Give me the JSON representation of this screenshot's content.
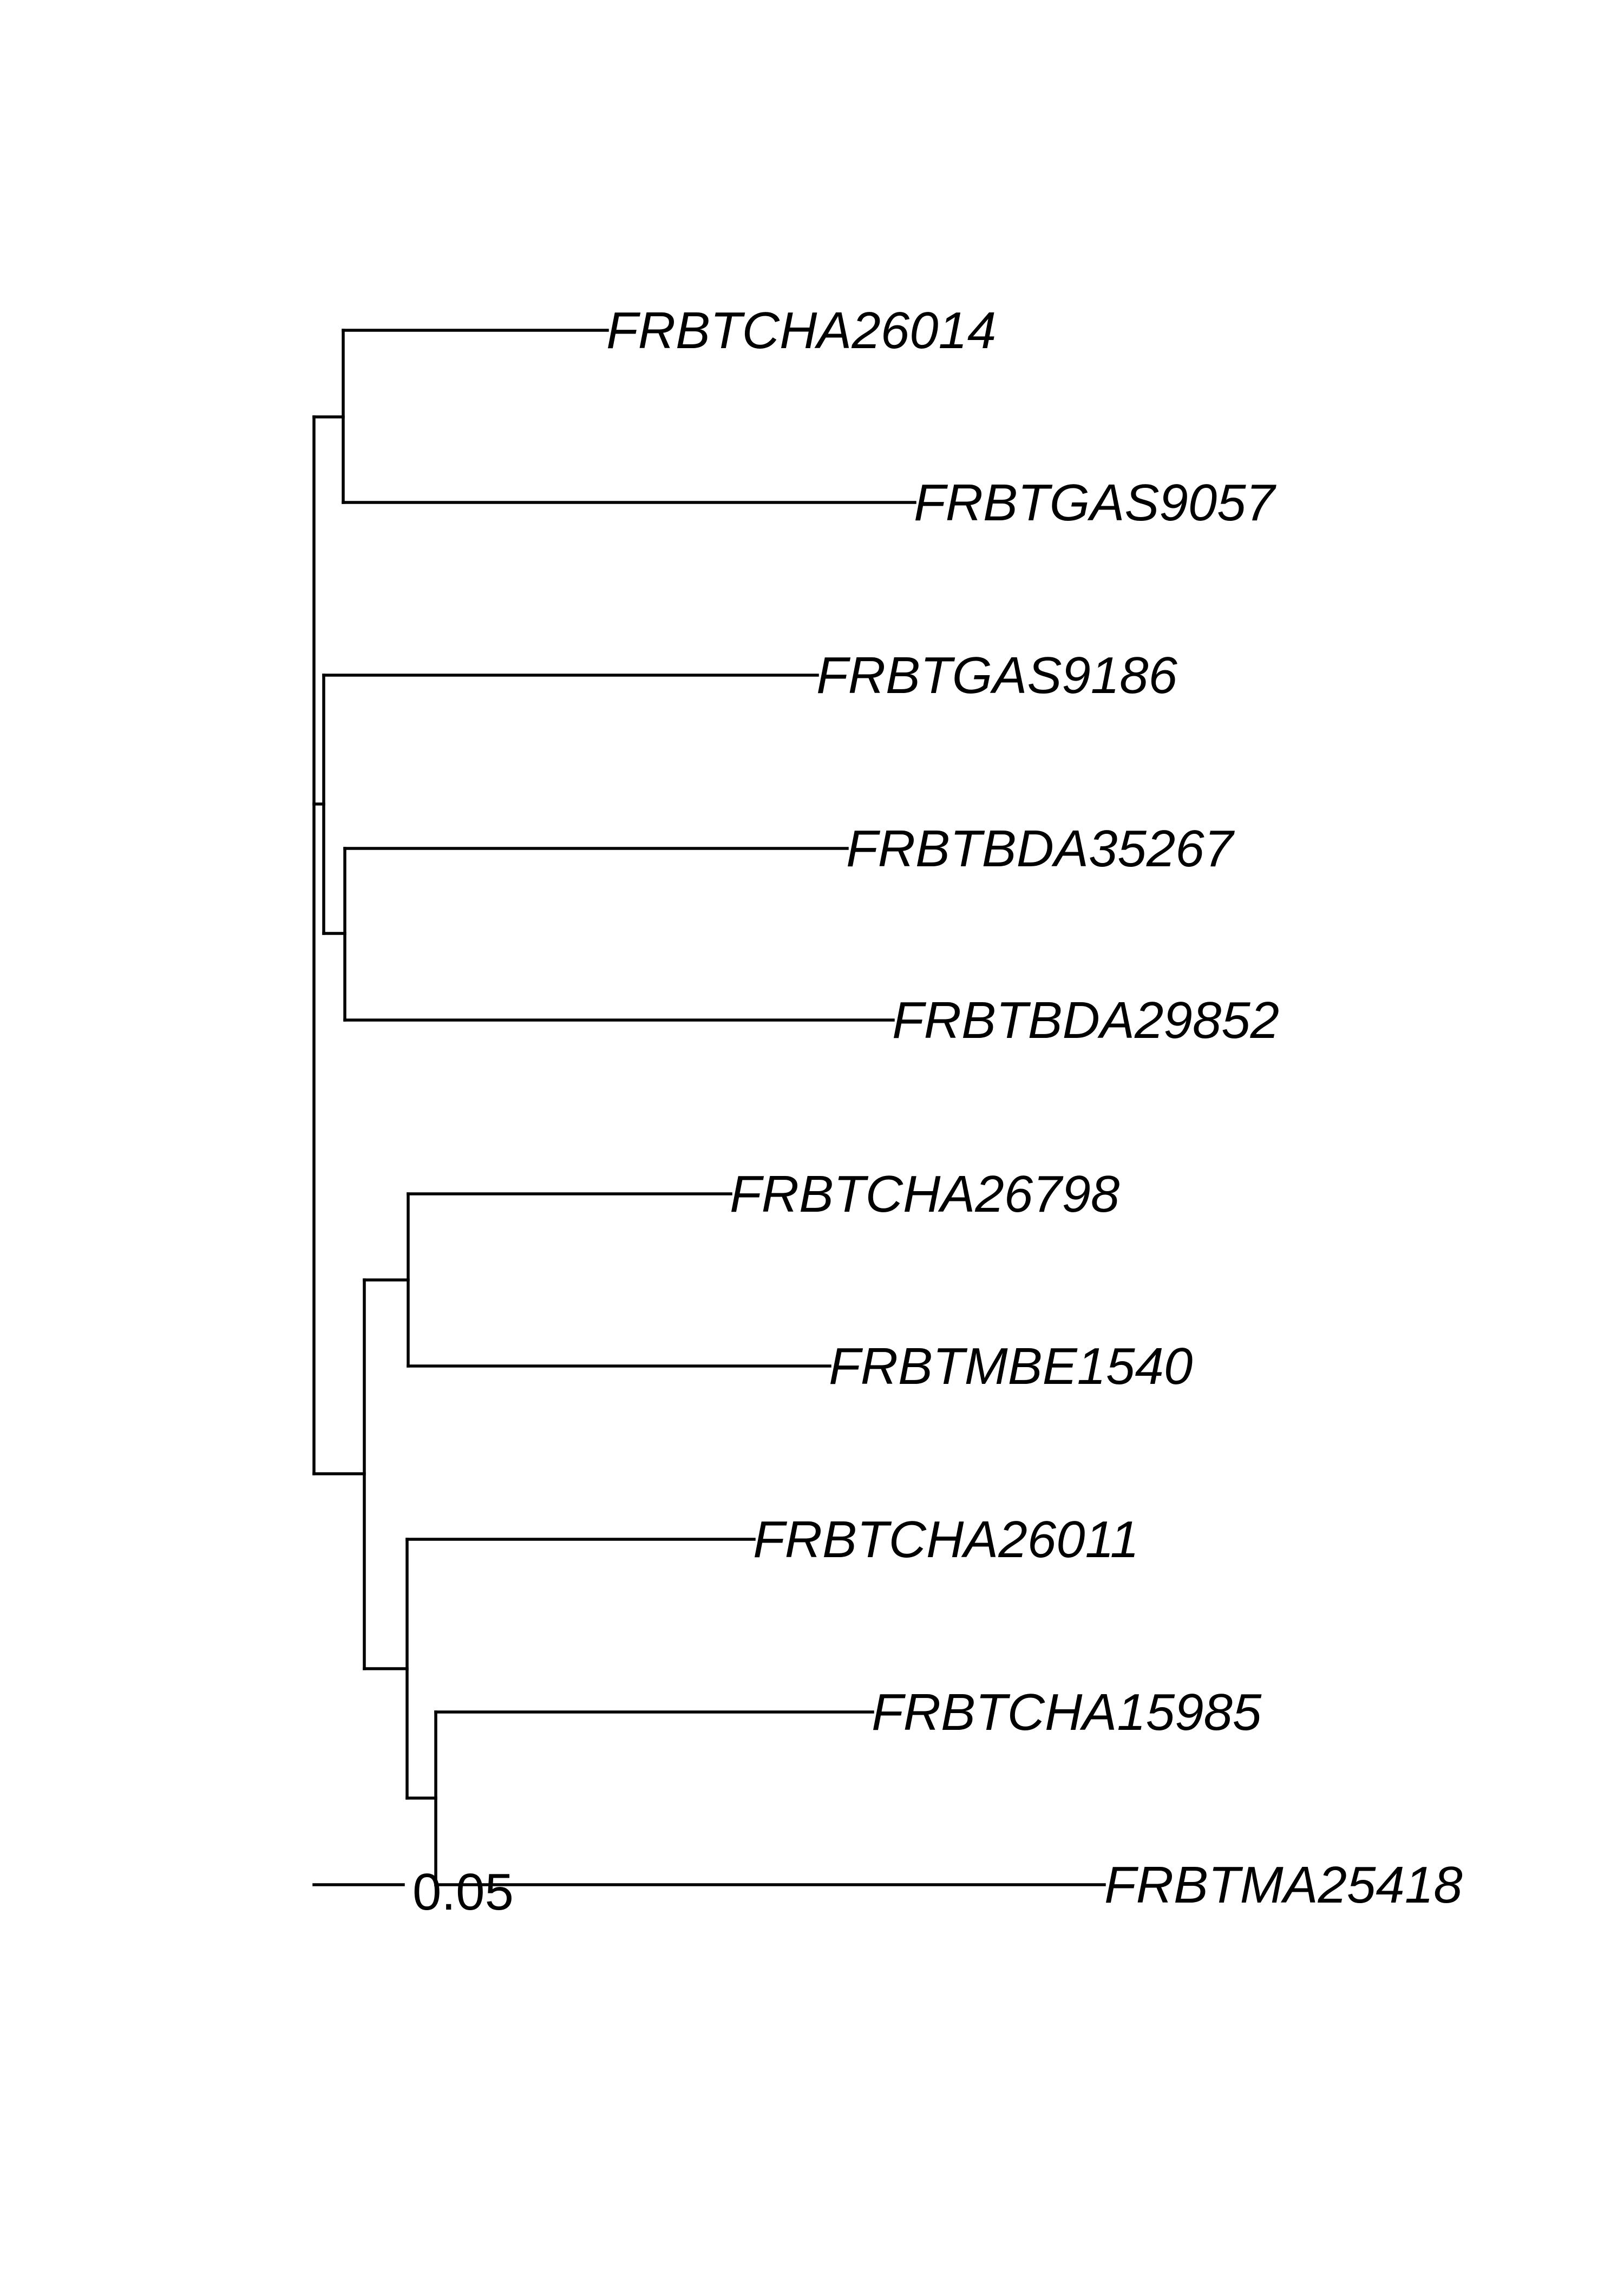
{
  "tree": {
    "tips": [
      "FRBTCHA26014",
      "FRBTGAS9057",
      "FRBTGAS9186",
      "FRBTBDA35267",
      "FRBTBDA29852",
      "FRBTCHA26798",
      "FRBTMBE1540",
      "FRBTCHA26011",
      "FRBTCHA15985",
      "FRBTMA25418"
    ],
    "scale_bar": {
      "label": "0.05",
      "length": 0.05
    },
    "colors": {
      "line": "#000000",
      "text": "#000000",
      "background": "#ffffff"
    }
  }
}
